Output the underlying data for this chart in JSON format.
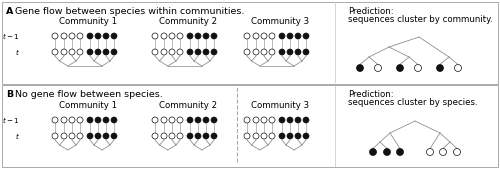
{
  "panel_A_title_bold": "A",
  "panel_A_title_rest": " Gene flow between species within communities.",
  "panel_B_title_bold": "B",
  "panel_B_title_rest": " No gene flow between species.",
  "community_labels": [
    "Community 1",
    "Community 2",
    "Community 3"
  ],
  "prediction_A_line1": "Prediction:",
  "prediction_A_line2": "sequences cluster by community.",
  "prediction_B_line1": "Prediction:",
  "prediction_B_line2": "sequences cluster by species.",
  "bg_color": "#ffffff",
  "border_color": "#aaaaaa",
  "line_color": "#888888",
  "dot_fill_dark": "#111111",
  "dot_fill_light": "#ffffff",
  "dot_edge": "#111111",
  "title_fontsize": 6.8,
  "label_fontsize": 6.2,
  "small_fontsize": 5.2
}
